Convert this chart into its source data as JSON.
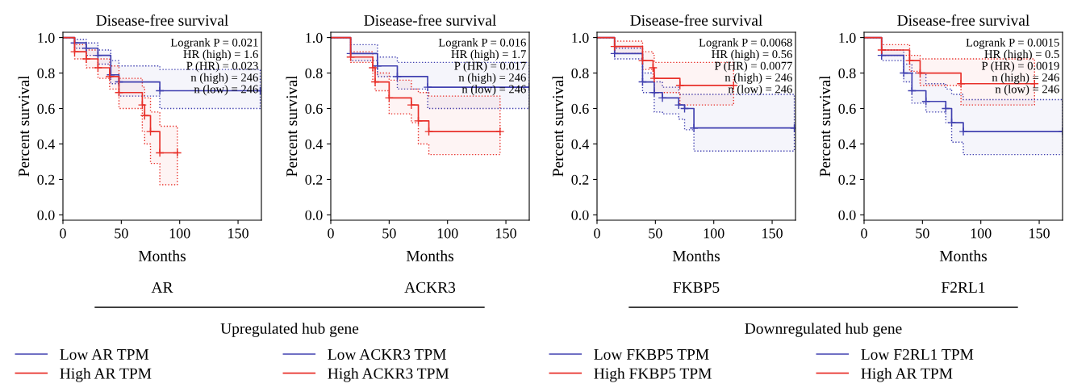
{
  "chart_data": [
    {
      "type": "step",
      "title": "Disease-free survival",
      "xlabel": "Months",
      "ylabel": "Percent survival",
      "xlim": [
        0,
        170
      ],
      "ylim": [
        -0.03,
        1.03
      ],
      "xticks": [
        0,
        50,
        100,
        150
      ],
      "yticks": [
        {
          "value": 0,
          "label": "0.0"
        },
        {
          "value": 0.2,
          "label": "0.2"
        },
        {
          "value": 0.4,
          "label": "0.4"
        },
        {
          "value": 0.6,
          "label": "0.6"
        },
        {
          "value": 0.8,
          "label": "0.8"
        },
        {
          "value": 1,
          "label": "1.0"
        }
      ],
      "grid": false,
      "legend": "bottom",
      "marker": "cross",
      "line_style": "solid",
      "annotations": [
        "Logrank P = 0.021",
        "HR (high) = 1.6",
        "P (HR) = 0.023",
        "n (high) = 246",
        "n (low) = 246",
        "AR",
        "Upregulated hub gene"
      ],
      "series": [
        {
          "name": "Low AR TPM",
          "color": "#4040b0",
          "x": [
            0,
            10,
            20,
            30,
            41,
            48,
            83,
            169
          ],
          "values": [
            1.0,
            0.97,
            0.94,
            0.9,
            0.79,
            0.75,
            0.7,
            0.7
          ],
          "upper": [
            1.0,
            0.99,
            0.97,
            0.93,
            0.87,
            0.84,
            0.82,
            0.82
          ],
          "lower": [
            1.0,
            0.94,
            0.9,
            0.85,
            0.74,
            0.67,
            0.6,
            0.6
          ]
        },
        {
          "name": "High AR TPM",
          "color": "#e8302a",
          "x": [
            0,
            10,
            20,
            30,
            40,
            48,
            68,
            70,
            75,
            83,
            98
          ],
          "values": [
            1.0,
            0.92,
            0.88,
            0.83,
            0.78,
            0.69,
            0.62,
            0.56,
            0.47,
            0.35,
            0.35
          ],
          "upper": [
            1.0,
            0.96,
            0.93,
            0.88,
            0.84,
            0.77,
            0.72,
            0.66,
            0.58,
            0.5,
            0.5
          ],
          "lower": [
            1.0,
            0.88,
            0.83,
            0.77,
            0.71,
            0.6,
            0.47,
            0.4,
            0.29,
            0.17,
            0.17
          ]
        }
      ]
    },
    {
      "type": "step",
      "title": "Disease-free survival",
      "xlabel": "Months",
      "ylabel": "Percent survival",
      "xlim": [
        0,
        170
      ],
      "ylim": [
        -0.03,
        1.03
      ],
      "xticks": [
        0,
        50,
        100,
        150
      ],
      "yticks": [
        {
          "value": 0,
          "label": "0.0"
        },
        {
          "value": 0.2,
          "label": "0.2"
        },
        {
          "value": 0.4,
          "label": "0.4"
        },
        {
          "value": 0.6,
          "label": "0.6"
        },
        {
          "value": 0.8,
          "label": "0.8"
        },
        {
          "value": 1,
          "label": "1.0"
        }
      ],
      "grid": false,
      "legend": "bottom",
      "marker": "cross",
      "line_style": "solid",
      "annotations": [
        "Logrank P = 0.016",
        "HR (high) = 1.7",
        "P (HR) = 0.017",
        "n (high) = 246",
        "n (low) = 246",
        "ACKR3"
      ],
      "series": [
        {
          "name": "Low ACKR3 TPM",
          "color": "#4040b0",
          "x": [
            0,
            17,
            40,
            57,
            83,
            170
          ],
          "values": [
            1.0,
            0.91,
            0.84,
            0.78,
            0.72,
            0.72
          ],
          "upper": [
            1.0,
            0.96,
            0.89,
            0.86,
            0.86,
            0.86
          ],
          "lower": [
            1.0,
            0.87,
            0.78,
            0.71,
            0.6,
            0.6
          ]
        },
        {
          "name": "High ACKR3 TPM",
          "color": "#e8302a",
          "x": [
            0,
            17,
            36,
            38,
            50,
            69,
            75,
            84,
            145
          ],
          "values": [
            1.0,
            0.89,
            0.83,
            0.75,
            0.66,
            0.62,
            0.53,
            0.47,
            0.47
          ],
          "upper": [
            1.0,
            0.92,
            0.84,
            0.8,
            0.76,
            0.71,
            0.69,
            0.67,
            0.67
          ],
          "lower": [
            1.0,
            0.86,
            0.76,
            0.7,
            0.57,
            0.52,
            0.4,
            0.34,
            0.34
          ]
        }
      ]
    },
    {
      "type": "step",
      "title": "Disease-free survival",
      "xlabel": "Months",
      "ylabel": "Percent survival",
      "xlim": [
        0,
        170
      ],
      "ylim": [
        -0.03,
        1.03
      ],
      "xticks": [
        0,
        50,
        100,
        150
      ],
      "yticks": [
        {
          "value": 0,
          "label": "0.0"
        },
        {
          "value": 0.2,
          "label": "0.2"
        },
        {
          "value": 0.4,
          "label": "0.4"
        },
        {
          "value": 0.6,
          "label": "0.6"
        },
        {
          "value": 0.8,
          "label": "0.8"
        },
        {
          "value": 1,
          "label": "1.0"
        }
      ],
      "grid": false,
      "legend": "bottom",
      "marker": "cross",
      "line_style": "solid",
      "annotations": [
        "Logrank P = 0.0068",
        "HR (high) = 0.56",
        "P (HR) = 0.0077",
        "n (high) = 246",
        "n (low) = 246",
        "FKBP5",
        "Downregulated hub gene"
      ],
      "series": [
        {
          "name": "Low FKBP5 TPM",
          "color": "#4040b0",
          "x": [
            0,
            15,
            39,
            49,
            56,
            70,
            75,
            83,
            169
          ],
          "values": [
            1.0,
            0.91,
            0.75,
            0.69,
            0.66,
            0.62,
            0.6,
            0.49,
            0.49
          ],
          "upper": [
            1.0,
            0.94,
            0.8,
            0.75,
            0.72,
            0.68,
            0.68,
            0.68,
            0.68
          ],
          "lower": [
            1.0,
            0.88,
            0.69,
            0.58,
            0.57,
            0.54,
            0.48,
            0.36,
            0.36
          ]
        },
        {
          "name": "High FKBP5 TPM",
          "color": "#e8302a",
          "x": [
            0,
            15,
            39,
            48,
            49,
            71,
            117
          ],
          "values": [
            1.0,
            0.95,
            0.87,
            0.83,
            0.77,
            0.73,
            0.73
          ],
          "upper": [
            1.0,
            0.98,
            0.92,
            0.9,
            0.86,
            0.86,
            0.86
          ],
          "lower": [
            1.0,
            0.91,
            0.82,
            0.78,
            0.69,
            0.62,
            0.62
          ]
        }
      ]
    },
    {
      "type": "step",
      "title": "Disease-free survival",
      "xlabel": "Months",
      "ylabel": "Percent survival",
      "xlim": [
        0,
        170
      ],
      "ylim": [
        -0.03,
        1.03
      ],
      "xticks": [
        0,
        50,
        100,
        150
      ],
      "yticks": [
        {
          "value": 0,
          "label": "0.0"
        },
        {
          "value": 0.2,
          "label": "0.2"
        },
        {
          "value": 0.4,
          "label": "0.4"
        },
        {
          "value": 0.6,
          "label": "0.6"
        },
        {
          "value": 0.8,
          "label": "0.8"
        },
        {
          "value": 1,
          "label": "1.0"
        }
      ],
      "grid": false,
      "legend": "bottom",
      "marker": "cross",
      "line_style": "solid",
      "annotations": [
        "Logrank P = 0.0015",
        "HR (high) = 0.5",
        "P (HR) = 0.0019",
        "n (high) = 246",
        "n (low) = 246",
        "F2RL1"
      ],
      "series": [
        {
          "name": "Low F2RL1 TPM",
          "color": "#4040b0",
          "x": [
            0,
            15,
            34,
            41,
            53,
            70,
            75,
            85,
            170
          ],
          "values": [
            1.0,
            0.9,
            0.8,
            0.7,
            0.64,
            0.6,
            0.52,
            0.47,
            0.47
          ],
          "upper": [
            1.0,
            0.93,
            0.85,
            0.8,
            0.74,
            0.71,
            0.68,
            0.65,
            0.65
          ],
          "lower": [
            1.0,
            0.87,
            0.75,
            0.63,
            0.58,
            0.52,
            0.41,
            0.34,
            0.34
          ]
        },
        {
          "name": "High AR TPM",
          "color": "#e8302a",
          "x": [
            0,
            15,
            39,
            48,
            83,
            146
          ],
          "values": [
            1.0,
            0.93,
            0.87,
            0.8,
            0.74,
            0.74
          ],
          "upper": [
            1.0,
            0.96,
            0.9,
            0.88,
            0.88,
            0.88
          ],
          "lower": [
            1.0,
            0.9,
            0.81,
            0.73,
            0.62,
            0.62
          ]
        }
      ]
    }
  ]
}
